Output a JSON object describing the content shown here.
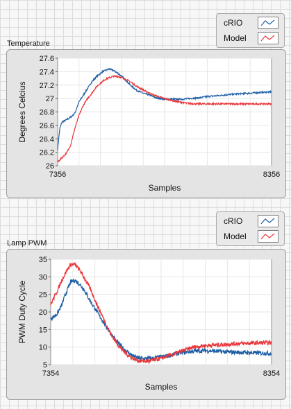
{
  "colors": {
    "crio": "#1f5fa6",
    "model": "#e8383c"
  },
  "legend_items": [
    {
      "label": "cRIO",
      "color": "#1f5fa6"
    },
    {
      "label": "Model",
      "color": "#e8383c"
    }
  ],
  "chart_data": [
    {
      "type": "line",
      "title": "Temperature",
      "xlabel": "Samples",
      "ylabel": "Degrees Celcius",
      "xlim": [
        7356,
        8356
      ],
      "ylim": [
        26,
        27.6
      ],
      "yticks": [
        "26",
        "26.2",
        "26.4",
        "26.6",
        "26.8",
        "27",
        "27.2",
        "27.4",
        "27.6"
      ],
      "xticks": [
        "7356",
        "8356"
      ],
      "grid": true,
      "legend": "top-right",
      "series": [
        {
          "name": "cRIO",
          "x": [
            7356,
            7366,
            7376,
            7396,
            7416,
            7436,
            7456,
            7476,
            7496,
            7516,
            7536,
            7566,
            7596,
            7616,
            7636,
            7666,
            7696,
            7726,
            7756,
            7786,
            7816,
            7856,
            7896,
            7936,
            7976,
            8016,
            8056,
            8096,
            8156,
            8206,
            8256,
            8306,
            8356
          ],
          "y": [
            26.25,
            26.55,
            26.65,
            26.68,
            26.72,
            26.78,
            26.95,
            27.05,
            27.15,
            27.25,
            27.32,
            27.4,
            27.44,
            27.42,
            27.38,
            27.3,
            27.2,
            27.12,
            27.08,
            27.05,
            27.01,
            26.99,
            26.99,
            26.99,
            27.0,
            27.01,
            27.03,
            27.04,
            27.06,
            27.07,
            27.08,
            27.09,
            27.1
          ]
        },
        {
          "name": "Model",
          "x": [
            7356,
            7376,
            7396,
            7416,
            7436,
            7456,
            7476,
            7496,
            7516,
            7536,
            7556,
            7576,
            7596,
            7616,
            7636,
            7666,
            7696,
            7726,
            7766,
            7806,
            7856,
            7906,
            7956,
            8006,
            8056,
            8106,
            8156,
            8206,
            8256,
            8306,
            8356
          ],
          "y": [
            26.05,
            26.12,
            26.18,
            26.3,
            26.55,
            26.75,
            26.9,
            27.0,
            27.08,
            27.17,
            27.23,
            27.28,
            27.31,
            27.33,
            27.33,
            27.3,
            27.25,
            27.18,
            27.11,
            27.05,
            27.0,
            26.96,
            26.93,
            26.92,
            26.92,
            26.92,
            26.92,
            26.92,
            26.92,
            26.92,
            26.92
          ]
        }
      ]
    },
    {
      "type": "line",
      "title": "Lamp PWM",
      "xlabel": "Samples",
      "ylabel": "PWM Duty Cycle",
      "xlim": [
        7354,
        8354
      ],
      "ylim": [
        5,
        35
      ],
      "yticks": [
        "5",
        "10",
        "15",
        "20",
        "25",
        "30",
        "35"
      ],
      "xticks": [
        "7354",
        "8354"
      ],
      "grid": true,
      "legend": "top-right",
      "series": [
        {
          "name": "cRIO",
          "x": [
            7354,
            7364,
            7384,
            7404,
            7424,
            7444,
            7464,
            7484,
            7504,
            7534,
            7564,
            7594,
            7624,
            7654,
            7684,
            7714,
            7734,
            7754,
            7784,
            7814,
            7854,
            7904,
            7954,
            8004,
            8054,
            8104,
            8154,
            8204,
            8254,
            8304,
            8354
          ],
          "y": [
            18,
            18.5,
            19.5,
            22,
            25.5,
            28.5,
            29,
            28,
            26.5,
            23,
            20,
            17,
            14,
            11.5,
            9.5,
            8,
            7.2,
            6.8,
            6.7,
            6.8,
            7.2,
            7.8,
            8.5,
            8.8,
            9,
            8.8,
            8.6,
            8.5,
            8.4,
            8.3,
            8.2
          ]
        },
        {
          "name": "Model",
          "x": [
            7354,
            7364,
            7384,
            7404,
            7424,
            7444,
            7464,
            7484,
            7504,
            7534,
            7564,
            7594,
            7624,
            7654,
            7684,
            7714,
            7734,
            7754,
            7784,
            7814,
            7854,
            7904,
            7954,
            8004,
            8054,
            8104,
            8154,
            8204,
            8254,
            8304,
            8354
          ],
          "y": [
            22,
            23.5,
            26,
            29,
            31.5,
            33.5,
            33.5,
            32,
            30,
            26.5,
            22,
            18,
            14,
            11,
            8.8,
            7.2,
            6.5,
            6.1,
            6.0,
            6.1,
            6.8,
            7.8,
            9,
            10,
            10.4,
            10.6,
            10.8,
            11,
            11.1,
            11.2,
            11.2
          ]
        }
      ]
    }
  ]
}
